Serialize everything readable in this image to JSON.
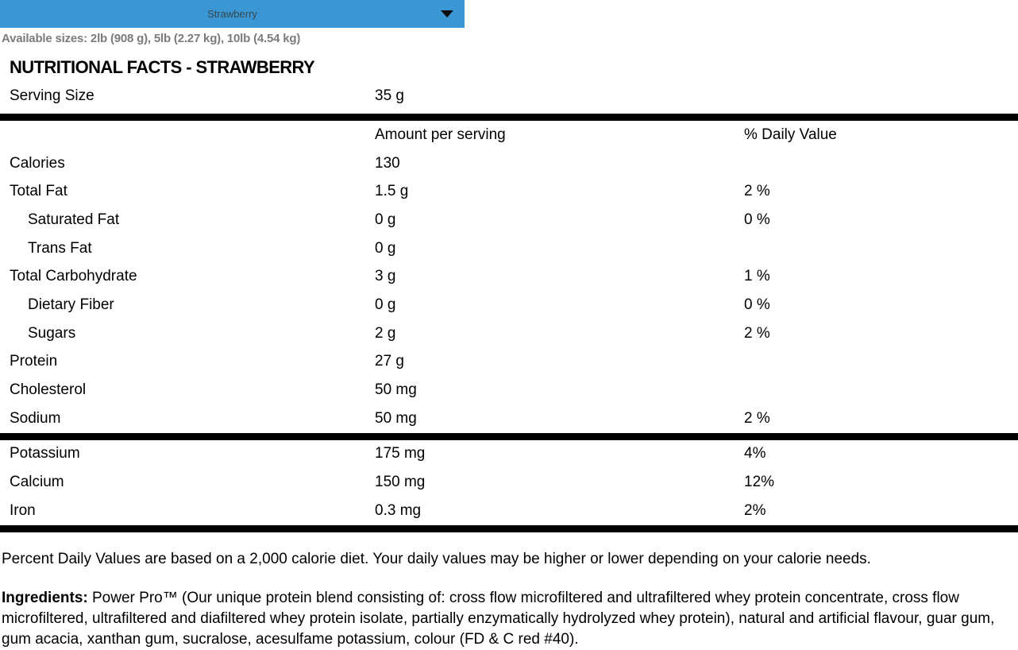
{
  "dropdown": {
    "selected": "Strawberry"
  },
  "available_sizes": "Available sizes: 2lb (908 g), 5lb (2.27 kg), 10lb (4.54 kg)",
  "title": "NUTRITIONAL FACTS - STRAWBERRY",
  "serving": {
    "label": "Serving Size",
    "value": "35 g"
  },
  "table": {
    "headers": {
      "amount": "Amount per serving",
      "dv": "% Daily Value"
    },
    "rows": [
      {
        "label": "Calories",
        "amount": "130",
        "dv": ""
      },
      {
        "label": "Total Fat",
        "amount": "1.5 g",
        "dv": "2 %"
      },
      {
        "label": "Saturated Fat",
        "amount": "0 g",
        "dv": "0 %"
      },
      {
        "label": "Trans Fat",
        "amount": "0 g",
        "dv": ""
      },
      {
        "label": "Total Carbohydrate",
        "amount": "3 g",
        "dv": "1 %"
      },
      {
        "label": "Dietary Fiber",
        "amount": "0 g",
        "dv": "0 %"
      },
      {
        "label": "Sugars",
        "amount": "2 g",
        "dv": "2 %"
      },
      {
        "label": "Protein",
        "amount": "27 g",
        "dv": ""
      },
      {
        "label": "Cholesterol",
        "amount": "50 mg",
        "dv": ""
      },
      {
        "label": "Sodium",
        "amount": "50 mg",
        "dv": "2 %"
      }
    ],
    "mineral_rows": [
      {
        "label": "Potassium",
        "amount": "175 mg",
        "dv": "4%"
      },
      {
        "label": "Calcium",
        "amount": "150 mg",
        "dv": "12%"
      },
      {
        "label": "Iron",
        "amount": "0.3 mg",
        "dv": "2%"
      }
    ]
  },
  "footnote": "Percent Daily Values are based on a 2,000 calorie diet. Your daily values may be higher or lower depending on your calorie needs.",
  "ingredients": {
    "label": "Ingredients:",
    "text": " Power Pro™ (Our unique protein blend consisting of: cross flow microfiltered and ultrafiltered whey protein concentrate, cross flow microfiltered, ultrafiltered and diafiltered whey protein isolate, partially enzymatically hydrolyzed whey protein), natural and artificial flavour, guar gum, gum acacia, xanthan gum, sucralose, acesulfame potassium, colour (FD & C red #40)."
  },
  "colors": {
    "dropdown_bg": "#3a97d4",
    "sizes_text": "#7b7b7b",
    "divider_bar": "#000000"
  }
}
